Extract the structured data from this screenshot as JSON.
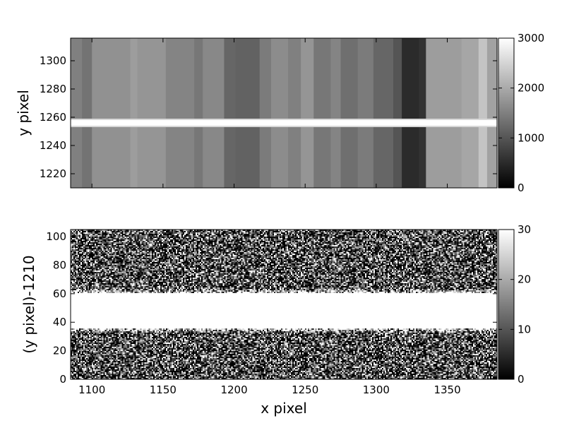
{
  "chart_data": [
    {
      "type": "heatmap",
      "title": "",
      "xlabel": "",
      "ylabel": "y pixel",
      "xlim": [
        1085,
        1385
      ],
      "ylim": [
        1210,
        1316
      ],
      "x_ticks": [
        1100,
        1150,
        1200,
        1250,
        1300,
        1350
      ],
      "y_ticks": [
        1220,
        1240,
        1260,
        1280,
        1300
      ],
      "y_tick_labels": [
        "1220",
        "1240",
        "1260",
        "1280",
        "1300"
      ],
      "show_x_tick_labels": false,
      "colormap": "gray",
      "colorbar": {
        "min": 0,
        "max": 3000,
        "ticks": [
          0,
          1000,
          2000,
          3000
        ],
        "tick_labels": [
          "0",
          "1000",
          "2000",
          "3000"
        ]
      },
      "bright_band": {
        "center_y": 1256,
        "half_width": 2,
        "value": 3000
      },
      "column_bands": [
        {
          "x0": 1085,
          "x1": 1093,
          "value": 1500
        },
        {
          "x0": 1093,
          "x1": 1100,
          "value": 1350
        },
        {
          "x0": 1100,
          "x1": 1127,
          "value": 1700
        },
        {
          "x0": 1127,
          "x1": 1132,
          "value": 1850
        },
        {
          "x0": 1132,
          "x1": 1152,
          "value": 1750
        },
        {
          "x0": 1152,
          "x1": 1172,
          "value": 1550
        },
        {
          "x0": 1172,
          "x1": 1178,
          "value": 1400
        },
        {
          "x0": 1178,
          "x1": 1193,
          "value": 1600
        },
        {
          "x0": 1193,
          "x1": 1201,
          "value": 1200
        },
        {
          "x0": 1201,
          "x1": 1218,
          "value": 1150
        },
        {
          "x0": 1218,
          "x1": 1226,
          "value": 1450
        },
        {
          "x0": 1226,
          "x1": 1238,
          "value": 1650
        },
        {
          "x0": 1238,
          "x1": 1247,
          "value": 1500
        },
        {
          "x0": 1247,
          "x1": 1256,
          "value": 1750
        },
        {
          "x0": 1256,
          "x1": 1268,
          "value": 1400
        },
        {
          "x0": 1268,
          "x1": 1275,
          "value": 1550
        },
        {
          "x0": 1275,
          "x1": 1287,
          "value": 1300
        },
        {
          "x0": 1287,
          "x1": 1298,
          "value": 1450
        },
        {
          "x0": 1298,
          "x1": 1312,
          "value": 1200
        },
        {
          "x0": 1312,
          "x1": 1318,
          "value": 1000
        },
        {
          "x0": 1318,
          "x1": 1330,
          "value": 500
        },
        {
          "x0": 1330,
          "x1": 1335,
          "value": 600
        },
        {
          "x0": 1335,
          "x1": 1360,
          "value": 1850
        },
        {
          "x0": 1360,
          "x1": 1372,
          "value": 1950
        },
        {
          "x0": 1372,
          "x1": 1378,
          "value": 2300
        },
        {
          "x0": 1378,
          "x1": 1385,
          "value": 1900
        }
      ]
    },
    {
      "type": "heatmap",
      "title": "",
      "xlabel": "x pixel",
      "ylabel": "(y pixel)-1210",
      "xlim": [
        1085,
        1385
      ],
      "ylim": [
        0,
        105
      ],
      "x_ticks": [
        1100,
        1150,
        1200,
        1250,
        1300,
        1350
      ],
      "x_tick_labels": [
        "1100",
        "1150",
        "1200",
        "1250",
        "1300",
        "1350"
      ],
      "y_ticks": [
        0,
        20,
        40,
        60,
        80,
        100
      ],
      "y_tick_labels": [
        "0",
        "20",
        "40",
        "60",
        "80",
        "100"
      ],
      "colormap": "gray",
      "colorbar": {
        "min": 0,
        "max": 30,
        "ticks": [
          0,
          10,
          20,
          30
        ],
        "tick_labels": [
          "0",
          "10",
          "20",
          "30"
        ]
      },
      "saturated_band": {
        "y0": 36,
        "y1": 60,
        "value": 30
      },
      "noise": "random pixel noise, clipped at 0 and 30"
    }
  ]
}
